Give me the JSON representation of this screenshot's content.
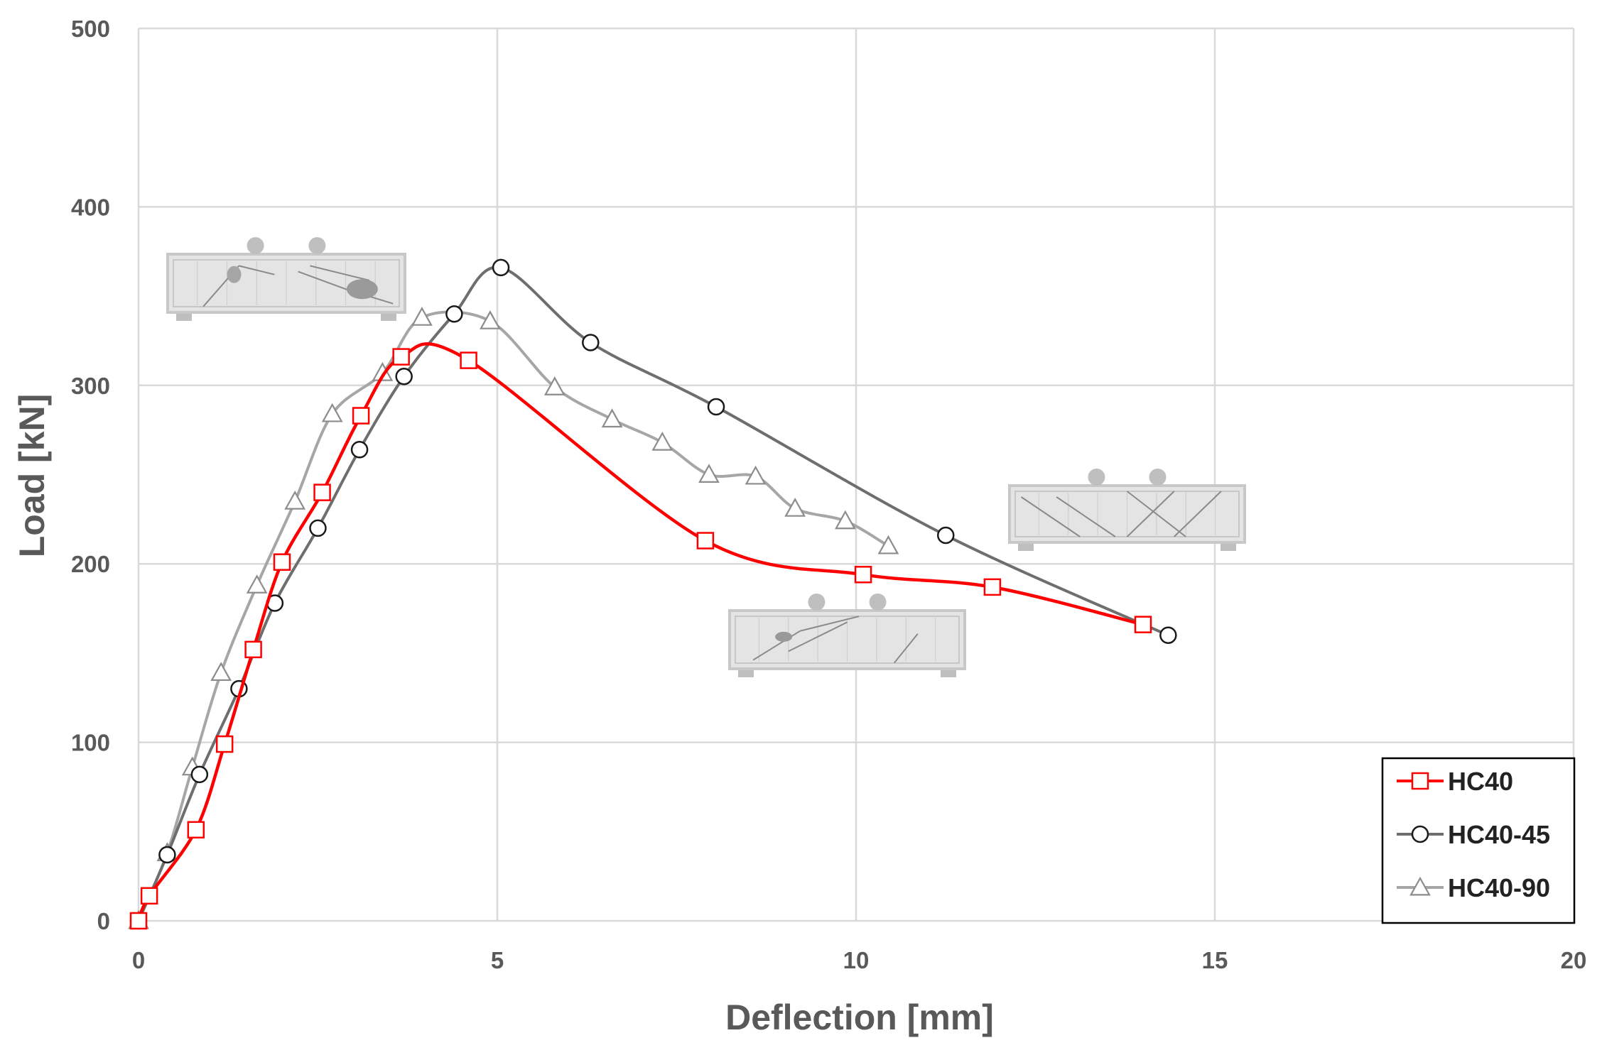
{
  "chart_data": {
    "type": "line",
    "title": "",
    "xlabel": "Deflection [mm]",
    "ylabel": "Load [kN]",
    "xlim": [
      0,
      20
    ],
    "ylim": [
      0,
      500
    ],
    "xticks": [
      0,
      5,
      10,
      15,
      20
    ],
    "yticks": [
      0,
      100,
      200,
      300,
      400,
      500
    ],
    "grid": true,
    "legend_position": "bottom-right",
    "series": [
      {
        "name": "HC40",
        "color": "#ff0000",
        "marker": "square",
        "x": [
          0,
          0.15,
          0.8,
          1.2,
          1.6,
          2.0,
          2.56,
          3.1,
          3.66,
          4.6,
          7.9,
          10.1,
          11.9,
          14.0
        ],
        "y": [
          0,
          14,
          51,
          99,
          152,
          201,
          240,
          283,
          316,
          314,
          213,
          194,
          187,
          166
        ]
      },
      {
        "name": "HC40-45",
        "color": "#6e6e6e",
        "marker": "circle",
        "x": [
          0,
          0.4,
          0.85,
          1.4,
          1.9,
          2.5,
          3.08,
          3.7,
          4.4,
          5.05,
          6.3,
          8.05,
          11.25,
          14.35
        ],
        "y": [
          0,
          37,
          82,
          130,
          178,
          220,
          264,
          305,
          340,
          366,
          324,
          288,
          216,
          160
        ]
      },
      {
        "name": "HC40-90",
        "color": "#a6a6a6",
        "marker": "triangle",
        "x": [
          0,
          0.4,
          0.75,
          1.15,
          1.65,
          2.18,
          2.7,
          3.4,
          3.95,
          4.9,
          5.8,
          6.6,
          7.3,
          7.95,
          8.6,
          9.15,
          9.85,
          10.45
        ],
        "y": [
          0,
          38,
          86,
          139,
          188,
          235,
          284,
          307,
          338,
          336,
          299,
          281,
          268,
          250,
          249,
          231,
          224,
          210
        ]
      }
    ]
  }
}
